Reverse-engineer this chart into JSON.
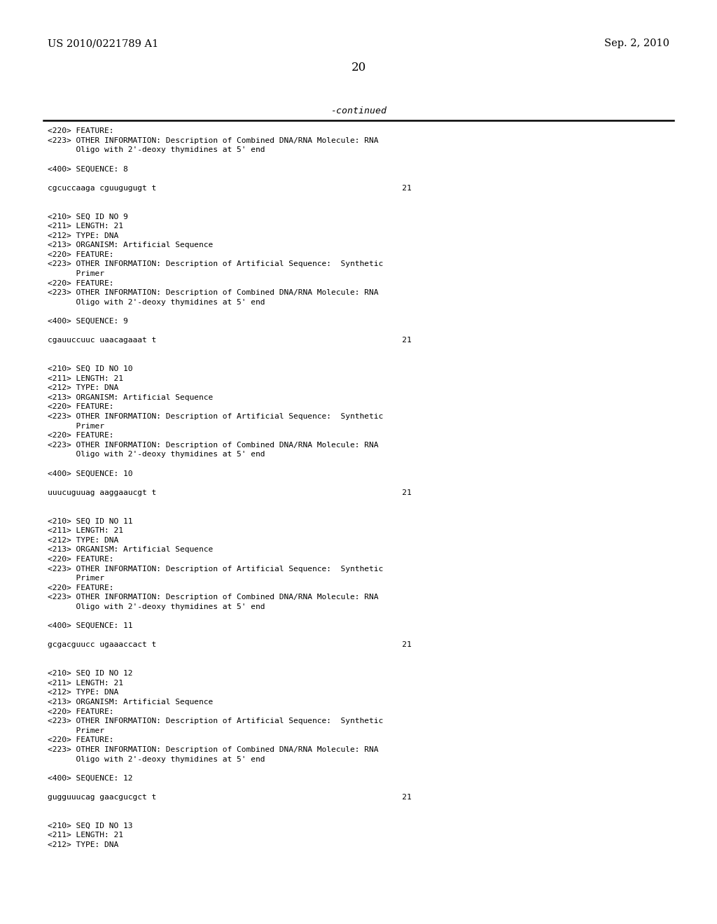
{
  "header_left": "US 2010/0221789 A1",
  "header_right": "Sep. 2, 2010",
  "page_number": "20",
  "continued_text": "-continued",
  "background_color": "#ffffff",
  "text_color": "#000000",
  "fig_width": 10.24,
  "fig_height": 13.2,
  "dpi": 100,
  "content_lines": [
    "<220> FEATURE:",
    "<223> OTHER INFORMATION: Description of Combined DNA/RNA Molecule: RNA",
    "      Oligo with 2'-deoxy thymidines at 5' end",
    "",
    "<400> SEQUENCE: 8",
    "",
    "cgcuccaaga cguugugugt t                                                    21",
    "",
    "",
    "<210> SEQ ID NO 9",
    "<211> LENGTH: 21",
    "<212> TYPE: DNA",
    "<213> ORGANISM: Artificial Sequence",
    "<220> FEATURE:",
    "<223> OTHER INFORMATION: Description of Artificial Sequence:  Synthetic",
    "      Primer",
    "<220> FEATURE:",
    "<223> OTHER INFORMATION: Description of Combined DNA/RNA Molecule: RNA",
    "      Oligo with 2'-deoxy thymidines at 5' end",
    "",
    "<400> SEQUENCE: 9",
    "",
    "cgauuccuuc uaacagaaat t                                                    21",
    "",
    "",
    "<210> SEQ ID NO 10",
    "<211> LENGTH: 21",
    "<212> TYPE: DNA",
    "<213> ORGANISM: Artificial Sequence",
    "<220> FEATURE:",
    "<223> OTHER INFORMATION: Description of Artificial Sequence:  Synthetic",
    "      Primer",
    "<220> FEATURE:",
    "<223> OTHER INFORMATION: Description of Combined DNA/RNA Molecule: RNA",
    "      Oligo with 2'-deoxy thymidines at 5' end",
    "",
    "<400> SEQUENCE: 10",
    "",
    "uuucuguuag aaggaaucgt t                                                    21",
    "",
    "",
    "<210> SEQ ID NO 11",
    "<211> LENGTH: 21",
    "<212> TYPE: DNA",
    "<213> ORGANISM: Artificial Sequence",
    "<220> FEATURE:",
    "<223> OTHER INFORMATION: Description of Artificial Sequence:  Synthetic",
    "      Primer",
    "<220> FEATURE:",
    "<223> OTHER INFORMATION: Description of Combined DNA/RNA Molecule: RNA",
    "      Oligo with 2'-deoxy thymidines at 5' end",
    "",
    "<400> SEQUENCE: 11",
    "",
    "gcgacguucc ugaaaccact t                                                    21",
    "",
    "",
    "<210> SEQ ID NO 12",
    "<211> LENGTH: 21",
    "<212> TYPE: DNA",
    "<213> ORGANISM: Artificial Sequence",
    "<220> FEATURE:",
    "<223> OTHER INFORMATION: Description of Artificial Sequence:  Synthetic",
    "      Primer",
    "<220> FEATURE:",
    "<223> OTHER INFORMATION: Description of Combined DNA/RNA Molecule: RNA",
    "      Oligo with 2'-deoxy thymidines at 5' end",
    "",
    "<400> SEQUENCE: 12",
    "",
    "gugguuucag gaacgucgct t                                                    21",
    "",
    "",
    "<210> SEQ ID NO 13",
    "<211> LENGTH: 21",
    "<212> TYPE: DNA"
  ]
}
